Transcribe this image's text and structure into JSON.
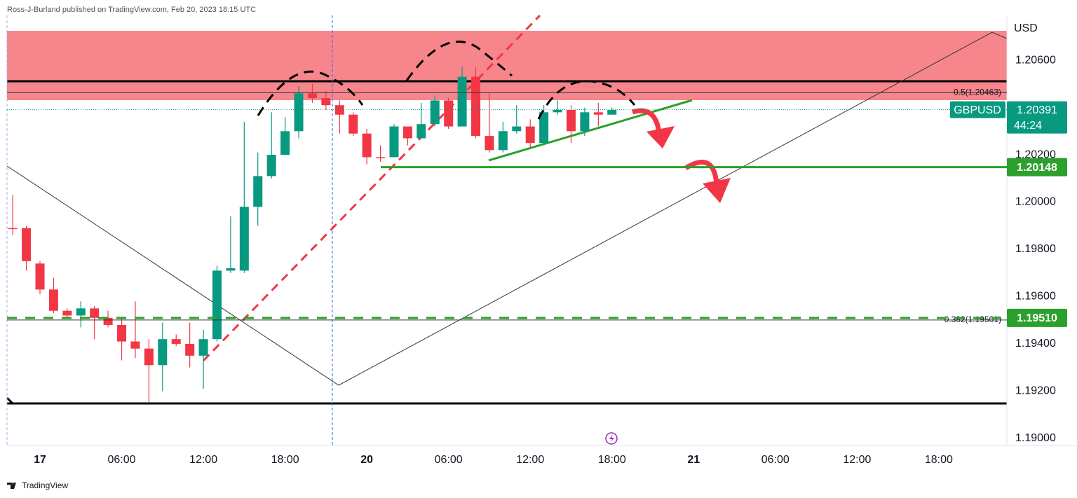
{
  "header": "Ross-J-Burland published on TradingView.com, Feb 20, 2023 18:15 UTC",
  "footer": "TradingView",
  "chart_data": {
    "type": "candlestick",
    "currency": "USD",
    "symbol": "GBPUSD",
    "last_price": {
      "value": 1.20391,
      "label": "1.20391"
    },
    "countdown": "44:24",
    "up_color": "#089981",
    "down_color": "#f23645",
    "level_color": "#2ca02c",
    "x": [
      -2,
      -1,
      0,
      1,
      2,
      3,
      4,
      5,
      6,
      7,
      8,
      9,
      10,
      11,
      12,
      13,
      14,
      15,
      16,
      17,
      18,
      19,
      20,
      21,
      22,
      23,
      24,
      25,
      26,
      27,
      28,
      29,
      30,
      31,
      32,
      33,
      34,
      35,
      36,
      37,
      38,
      39,
      40,
      41,
      42
    ],
    "open": [
      1.1989,
      1.1989,
      1.1974,
      1.1963,
      1.1954,
      1.1952,
      1.1955,
      1.1951,
      1.1948,
      1.1941,
      1.1938,
      1.1931,
      1.1942,
      1.194,
      1.1935,
      1.1942,
      1.1971,
      1.1971,
      1.1998,
      1.2011,
      1.202,
      1.203,
      1.2046,
      1.2044,
      1.2041,
      1.2037,
      1.2029,
      1.2019,
      1.2019,
      1.2032,
      1.2027,
      1.2033,
      1.2043,
      1.2032,
      1.2053,
      1.2028,
      1.2022,
      1.203,
      1.2032,
      1.2025,
      1.2038,
      1.2039,
      1.203,
      1.2038,
      1.2037
    ],
    "high": [
      1.2003,
      1.199,
      1.1975,
      1.1968,
      1.1955,
      1.1958,
      1.1956,
      1.1954,
      1.1951,
      1.1958,
      1.1942,
      1.1949,
      1.1944,
      1.1949,
      1.1946,
      1.1973,
      1.1994,
      1.2034,
      1.2021,
      1.2038,
      1.2036,
      1.2049,
      1.205,
      1.2047,
      1.2043,
      1.2038,
      1.2031,
      1.2024,
      1.2033,
      1.2032,
      1.2042,
      1.2045,
      1.2044,
      1.2057,
      1.2057,
      1.2046,
      1.2034,
      1.2041,
      1.2035,
      1.2041,
      1.2043,
      1.2041,
      1.204,
      1.2042,
      1.204
    ],
    "low": [
      1.1986,
      1.1971,
      1.1961,
      1.1953,
      1.1951,
      1.1947,
      1.1942,
      1.1947,
      1.1933,
      1.1934,
      1.1915,
      1.192,
      1.1939,
      1.193,
      1.1921,
      1.1941,
      1.197,
      1.197,
      1.199,
      1.201,
      1.202,
      1.2027,
      1.2042,
      1.2039,
      1.2029,
      1.2028,
      1.2016,
      1.2017,
      1.2019,
      1.2024,
      1.2027,
      1.2032,
      1.2031,
      1.2032,
      1.2027,
      1.2021,
      1.2021,
      1.2029,
      1.2023,
      1.2025,
      1.2037,
      1.2025,
      1.2028,
      1.2032,
      1.2037
    ],
    "close": [
      1.1989,
      1.1975,
      1.1963,
      1.1954,
      1.1952,
      1.1955,
      1.1951,
      1.1948,
      1.1941,
      1.1938,
      1.1931,
      1.1942,
      1.194,
      1.1935,
      1.1942,
      1.1971,
      1.1972,
      1.1998,
      1.2011,
      1.202,
      1.203,
      1.2046,
      1.2044,
      1.2041,
      1.2037,
      1.2029,
      1.2019,
      1.2019,
      1.2032,
      1.2027,
      1.2033,
      1.2043,
      1.2032,
      1.2053,
      1.2028,
      1.2022,
      1.203,
      1.2032,
      1.2025,
      1.2038,
      1.2039,
      1.203,
      1.2038,
      1.2037,
      1.2039
    ],
    "xlim": [
      -2.42,
      71
    ],
    "xticks": [
      {
        "value": 0,
        "label": "17"
      },
      {
        "value": 6,
        "label": "06:00"
      },
      {
        "value": 12,
        "label": "12:00"
      },
      {
        "value": 18,
        "label": "18:00"
      },
      {
        "value": 24,
        "label": "20"
      },
      {
        "value": 30,
        "label": "06:00"
      },
      {
        "value": 36,
        "label": "12:00"
      },
      {
        "value": 42,
        "label": "18:00"
      },
      {
        "value": 48,
        "label": "21"
      },
      {
        "value": 54,
        "label": "06:00"
      },
      {
        "value": 60,
        "label": "12:00"
      },
      {
        "value": 66,
        "label": "18:00"
      }
    ],
    "ylim": [
      1.1897,
      1.2079
    ],
    "yticks": [
      {
        "value": 1.19,
        "label": "1.19000"
      },
      {
        "value": 1.192,
        "label": "1.19200"
      },
      {
        "value": 1.194,
        "label": "1.19400"
      },
      {
        "value": 1.196,
        "label": "1.19600"
      },
      {
        "value": 1.198,
        "label": "1.19800"
      },
      {
        "value": 1.2,
        "label": "1.20000"
      },
      {
        "value": 1.202,
        "label": "1.20200"
      },
      {
        "value": 1.206,
        "label": "1.20600"
      }
    ],
    "levels": [
      {
        "value": 1.20148,
        "label": "1.20148"
      },
      {
        "value": 1.1951,
        "label": "1.19510"
      }
    ],
    "fib_levels": [
      {
        "value": 1.20463,
        "label": "0.5(1.20463)"
      },
      {
        "value": 1.19501,
        "label": "0.382(1.19501)"
      }
    ]
  }
}
